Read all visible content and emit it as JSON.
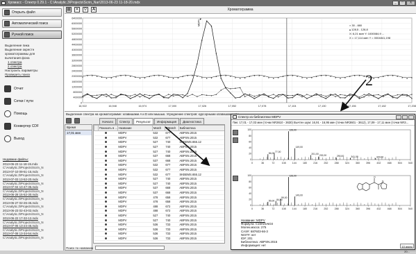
{
  "window": {
    "title": "Хромасс - Спектр 0.29.1 - C:\\Analytic.3\\Projects\\Scrin_Nar\\2013-06-23 11-18-20.mdx",
    "buttons": [
      "_",
      "□",
      "X"
    ]
  },
  "sidebar": {
    "open_file": "Открыть файл",
    "auto_search": "Автоматический поиск",
    "manual_search": "Ручной поиск",
    "options": [
      "Выделение пика",
      "Выделение окрестн",
      "хроматограммы для",
      "вычитания фона",
      "1 спектра",
      "2 спектра",
      "Настроить параметры",
      "Проверить поиск"
    ],
    "report": "Отчет",
    "sites": "Сетки / пути",
    "help": "Помощь",
    "converter": "Конвертер CDF",
    "exit": "Выход",
    "recent_header": "Недавние файлы:",
    "recent_files": [
      {
        "name": "2013-06-23 11-18-15.mdx",
        "path": "C:\\Analytic.3\\Projects\\Scrin_N"
      },
      {
        "name": "2013-07-10 09-51-15.mdx",
        "path": "C:\\Analytic.3\\Projects\\Scrin_N"
      },
      {
        "name": "2013-07-03 13-52-20.mdx",
        "path": "C:\\Analytic.3\\Projects\\Scrin_N"
      },
      {
        "name": "2013-07-04 10-47-35.mdx",
        "path": "C:\\Analytic.3\\Projects\\Scrin_N"
      },
      {
        "name": "2013-06-28 15-52-30.mdx",
        "path": "C:\\Analytic.3\\Projects\\Scrin_N"
      },
      {
        "name": "2013-06-27 02-26-45.mdx",
        "path": "C:\\Analytic.3\\Projects\\Scrin_N"
      },
      {
        "name": "2013-06-23 02-43-02.mdx",
        "path": "C:\\Analytic.3\\Projects\\Scrin_N"
      },
      {
        "name": "2013-06-22 17-32-12.mdx",
        "path": "C:\\Analytic.3\\Projects\\Scrin_N"
      },
      {
        "name": "2013-07-05 13-24-45.mdx",
        "path": "C:\\Analytic.3\\Projects\\Scrin_N"
      },
      {
        "name": "2013-07-08 13-34-54.mdx",
        "path": "C:\\Analytic.3\\Projects\\Scrin_N"
      }
    ]
  },
  "main": {
    "chrom_title": "Хроматограмма",
    "legend": {
      "line1": "30 - 880",
      "line2": "128,5 - 128,8",
      "line3": "X: 6,21 мин  Y: 1000084,9 ...",
      "line4": "X = 17,114 мин  Y = 0004841,198"
    },
    "info_line": "Выделение спектра на хроматограмме: клавишами A и D или мышью. Усреднение спектров: курсорными клавишами или ...",
    "tabs": [
      "Начало",
      "Спектр",
      "Результат",
      "Информация",
      "Диагностика"
    ],
    "active_tab": "Результат",
    "time_panel": {
      "header": "Время",
      "value": "17,01 мин"
    },
    "results_headers": [
      "",
      "Показать в ...",
      "Название",
      "Match",
      "RMatch",
      "Библиотека"
    ],
    "results_rows": [
      [
        "MDPV",
        "532",
        "677",
        "ABPSN.2015"
      ],
      [
        "MDPV",
        "532",
        "677",
        "ABPSN.2015"
      ],
      [
        "MDPV",
        "527",
        "740",
        "SKBEMS.655.12"
      ],
      [
        "MDPV",
        "527",
        "740",
        "ABPSN.2015"
      ],
      [
        "MDPV",
        "527",
        "740",
        "ABPSN.2015"
      ],
      [
        "MDPV",
        "537",
        "668",
        "ABPSN.2015"
      ],
      [
        "MDPV",
        "537",
        "668",
        "ABPSN.2015"
      ],
      [
        "MDPV",
        "532",
        "677",
        "ABPSN.2015"
      ],
      [
        "MDPV",
        "532",
        "677",
        "ABPSN.2015"
      ],
      [
        "MDPV",
        "532",
        "677",
        "SKBEMS.655.12"
      ],
      [
        "MDPV",
        "527",
        "740",
        "ABPSN.2015"
      ],
      [
        "MDPV",
        "527",
        "740",
        "ABPSN.2015"
      ],
      [
        "MDPV",
        "537",
        "668",
        "ABPSN.2015"
      ],
      [
        "MDPV",
        "537",
        "668",
        "ABPSN.2015"
      ],
      [
        "MDPV",
        "478",
        "658",
        "ABPSN.2015"
      ],
      [
        "MDPV",
        "478",
        "658",
        "ABPSN.2015"
      ],
      [
        "MDPV",
        "488",
        "672",
        "ABPSN.2015"
      ],
      [
        "MDPV",
        "488",
        "672",
        "ABPSN.2015"
      ],
      [
        "MDPV",
        "527",
        "740",
        "ABPSN.2015"
      ],
      [
        "MDPV",
        "527",
        "740",
        "ABPSN.2015"
      ],
      [
        "MDPV",
        "536",
        "733",
        "ABPSN.2015"
      ],
      [
        "MDPV",
        "536",
        "733",
        "ABPSN.2015"
      ],
      [
        "MDPV",
        "536",
        "733",
        "ABPSN.2015"
      ],
      [
        "MDPV",
        "536",
        "733",
        "ABPSN.2015"
      ]
    ],
    "search_by_name": "Поиск по названию"
  },
  "chart": {
    "y_ticks": [
      "6400000",
      "6000000",
      "5600000",
      "5200000",
      "4800000",
      "4400000",
      "4000000",
      "3600000",
      "3200000",
      "2800000",
      "2400000",
      "2000000",
      "1600000",
      "1200000",
      "800000",
      "400000",
      "0"
    ],
    "x_ticks": [
      "16,922",
      "16,948",
      "16,974",
      "17,000",
      "17,026",
      "17,052",
      "17,078",
      "17,104",
      "17,130",
      "17,156",
      "17,182",
      "17,208"
    ],
    "peak_label": "MDPV"
  },
  "popup": {
    "title": "Спектр из библиотеки MDPV",
    "info": "Пик: 17,01 - 17,03 мин (точки NR3610 - 3630) Вычтен шум: 16,91 - 16,95 мин (точки NR3601 - 3612), 17,09 - 17,11 мин (точки NR3...",
    "spec1_peaks": [
      {
        "mz": "126,00",
        "label": "126,00"
      },
      {
        "mz": "149,00",
        "label": "149,00"
      },
      {
        "mz": "77,00",
        "label": "77,00"
      },
      {
        "mz": "56,00",
        "label": "56,00"
      },
      {
        "mz": "201,00",
        "label": "201,00"
      },
      {
        "mz": "232,00",
        "label": "232,00"
      },
      {
        "mz": "290,00",
        "label": "290,00"
      },
      {
        "mz": "341,00",
        "label": "341,00"
      },
      {
        "mz": "429,00",
        "label": "429,00"
      }
    ],
    "spec2_peaks": [
      {
        "label": "126,00"
      },
      {
        "label": "149,00"
      },
      {
        "label": "99,00"
      },
      {
        "label": "55,00"
      },
      {
        "label": "84,00"
      }
    ],
    "x_ticks": [
      "0",
      "36",
      "72",
      "108",
      "144",
      "180",
      "216",
      "252",
      "288",
      "324",
      "360",
      "396",
      "432",
      "468",
      "504",
      "540"
    ],
    "compound": {
      "name": "Название: MDPV",
      "formula": "Формула: C16H21NO3",
      "mass": "Молек.масса: 275",
      "cas": "CAS#: 687603-66-3",
      "nist": "NIST#: нет",
      "id": "ID#: 201",
      "library": "Библиотека: ABPSN.2015",
      "notes": "Информация: нет"
    },
    "bottom_right": "10 июня 20..."
  },
  "annotation": {
    "label": "2"
  }
}
